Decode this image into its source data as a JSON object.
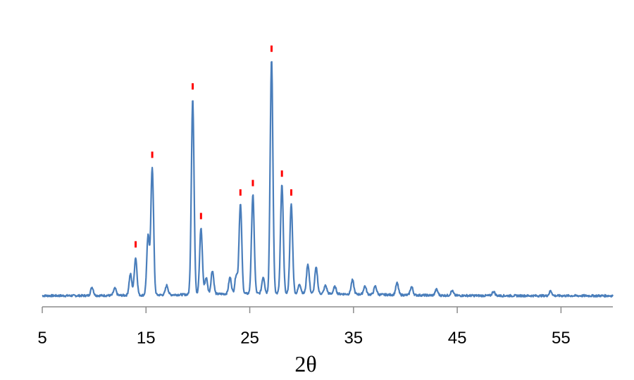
{
  "chart_data": {
    "type": "line",
    "title": "",
    "xlabel": "2θ",
    "ylabel": "",
    "xlim": [
      5,
      60
    ],
    "ylim": [
      0,
      100
    ],
    "x_ticks": [
      5,
      15,
      25,
      35,
      45,
      55
    ],
    "x_tick_labels": [
      "5",
      "15",
      "25",
      "35",
      "45",
      "55"
    ],
    "grid": false,
    "legend": "none",
    "line_color": "#4a7ebb",
    "marker_color": "#ff0000",
    "baseline": 0.8,
    "peaks": [
      {
        "x": 9.8,
        "y": 3.5
      },
      {
        "x": 12.0,
        "y": 3.0
      },
      {
        "x": 13.5,
        "y": 9.0
      },
      {
        "x": 14.0,
        "y": 16.0
      },
      {
        "x": 15.2,
        "y": 25.0
      },
      {
        "x": 15.6,
        "y": 54.0
      },
      {
        "x": 17.0,
        "y": 4.0
      },
      {
        "x": 19.5,
        "y": 83.0
      },
      {
        "x": 20.3,
        "y": 28.0
      },
      {
        "x": 20.8,
        "y": 7.0
      },
      {
        "x": 21.4,
        "y": 10.0
      },
      {
        "x": 23.1,
        "y": 7.0
      },
      {
        "x": 23.7,
        "y": 8.0
      },
      {
        "x": 24.1,
        "y": 38.0
      },
      {
        "x": 25.3,
        "y": 42.0
      },
      {
        "x": 26.3,
        "y": 7.0
      },
      {
        "x": 27.1,
        "y": 99.0
      },
      {
        "x": 28.1,
        "y": 46.0
      },
      {
        "x": 29.0,
        "y": 38.0
      },
      {
        "x": 29.8,
        "y": 4.0
      },
      {
        "x": 30.6,
        "y": 12.5
      },
      {
        "x": 31.4,
        "y": 11.0
      },
      {
        "x": 32.3,
        "y": 3.5
      },
      {
        "x": 33.2,
        "y": 3.0
      },
      {
        "x": 34.9,
        "y": 6.0
      },
      {
        "x": 36.1,
        "y": 3.5
      },
      {
        "x": 37.1,
        "y": 3.5
      },
      {
        "x": 39.2,
        "y": 5.0
      },
      {
        "x": 40.6,
        "y": 3.5
      },
      {
        "x": 43.0,
        "y": 2.5
      },
      {
        "x": 44.5,
        "y": 2.0
      },
      {
        "x": 48.5,
        "y": 1.8
      },
      {
        "x": 54.0,
        "y": 2.0
      }
    ],
    "marked_peaks_x": [
      14.0,
      15.6,
      19.5,
      20.3,
      24.1,
      25.3,
      27.1,
      28.1,
      29.0
    ]
  }
}
